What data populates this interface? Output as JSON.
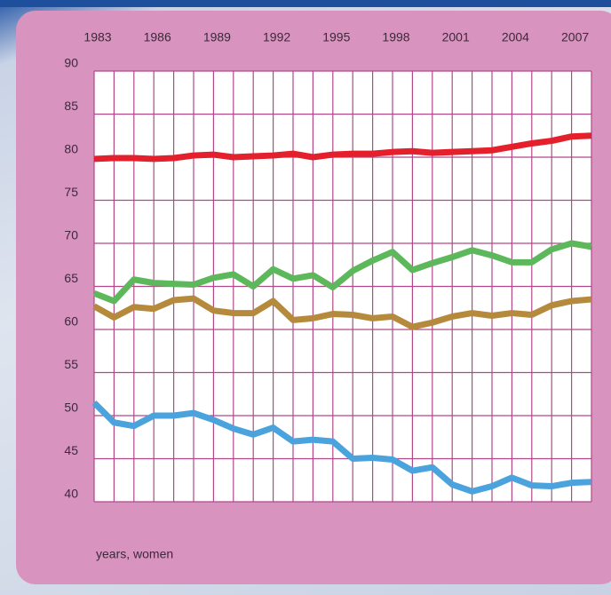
{
  "chart_data": {
    "type": "line",
    "x_label": "years, women",
    "x": [
      1983,
      1984,
      1985,
      1986,
      1987,
      1988,
      1989,
      1990,
      1991,
      1992,
      1993,
      1994,
      1995,
      1996,
      1997,
      1998,
      1999,
      2000,
      2001,
      2002,
      2003,
      2004,
      2005,
      2006,
      2007,
      2008
    ],
    "xlim": [
      1983,
      2008
    ],
    "xticks": [
      1983,
      1986,
      1989,
      1992,
      1995,
      1998,
      2001,
      2004,
      2007
    ],
    "ylim": [
      40,
      90
    ],
    "yticks": [
      40,
      45,
      50,
      55,
      60,
      65,
      70,
      75,
      80,
      85,
      90
    ],
    "grid": true,
    "series": [
      {
        "color": "#e3202b",
        "values": [
          79.8,
          79.9,
          79.9,
          79.8,
          79.9,
          80.2,
          80.3,
          80.0,
          80.1,
          80.2,
          80.4,
          80.0,
          80.3,
          80.4,
          80.4,
          80.6,
          80.7,
          80.5,
          80.6,
          80.7,
          80.8,
          81.2,
          81.6,
          81.9,
          82.4,
          82.5
        ]
      },
      {
        "color": "#5cb85a",
        "values": [
          64.2,
          63.3,
          65.8,
          65.4,
          65.3,
          65.2,
          66.0,
          66.4,
          65.0,
          67.0,
          65.9,
          66.3,
          64.9,
          66.8,
          68.0,
          69.0,
          66.9,
          67.7,
          68.4,
          69.2,
          68.6,
          67.8,
          67.8,
          69.3,
          70.0,
          69.6
        ]
      },
      {
        "color": "#b58a3c",
        "values": [
          62.7,
          61.4,
          62.6,
          62.4,
          63.4,
          63.6,
          62.2,
          61.9,
          61.9,
          63.3,
          61.1,
          61.3,
          61.8,
          61.7,
          61.3,
          61.5,
          60.3,
          60.8,
          61.5,
          61.9,
          61.6,
          61.9,
          61.7,
          62.8,
          63.3,
          63.5
        ]
      },
      {
        "color": "#4aa3dc",
        "values": [
          51.5,
          49.2,
          48.8,
          50.0,
          50.0,
          50.3,
          49.5,
          48.5,
          47.8,
          48.6,
          47.0,
          47.2,
          47.0,
          45.0,
          45.1,
          44.9,
          43.6,
          44.0,
          42.0,
          41.2,
          41.8,
          42.8,
          41.9,
          41.8,
          42.2,
          42.3
        ]
      }
    ]
  }
}
